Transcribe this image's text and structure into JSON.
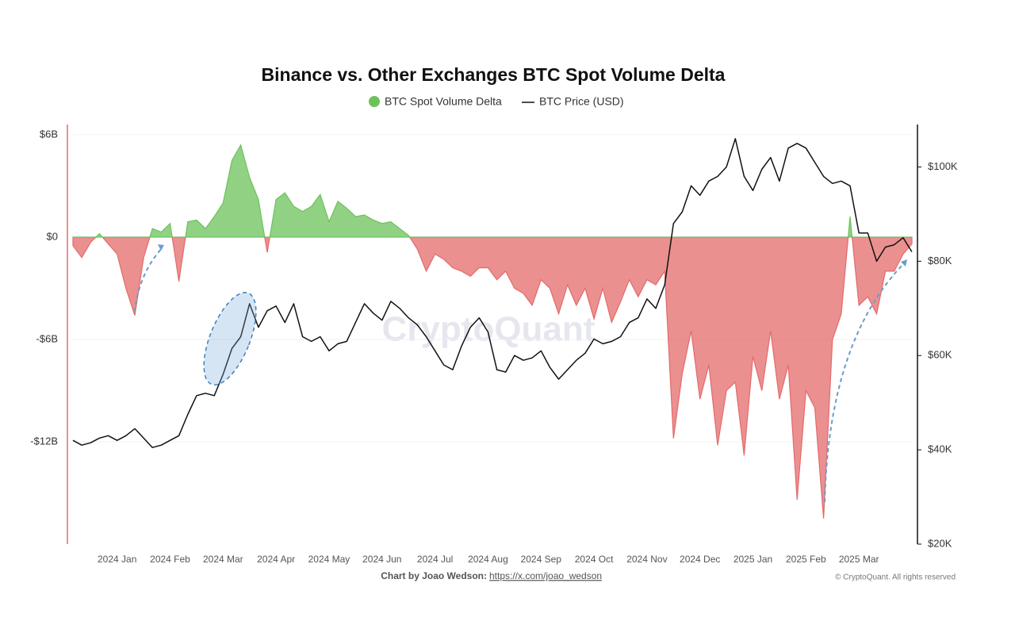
{
  "chart_data": {
    "type": "area_line",
    "title": "Binance vs. Other Exchanges BTC Spot Volume Delta",
    "watermark": "CryptoQuant",
    "credit": "Chart by Joao Wedson:",
    "credit_link": "https://x.com/joao_wedson",
    "copyright": "© CryptoQuant. All rights reserved",
    "categories": [
      null,
      null,
      null,
      null,
      null,
      "2024 Jan",
      null,
      null,
      null,
      null,
      null,
      "2024 Feb",
      null,
      null,
      null,
      null,
      null,
      "2024 Mar",
      null,
      null,
      null,
      null,
      null,
      "2024 Apr",
      null,
      null,
      null,
      null,
      null,
      "2024 May",
      null,
      null,
      null,
      null,
      null,
      "2024 Jun",
      null,
      null,
      null,
      null,
      null,
      "2024 Jul",
      null,
      null,
      null,
      null,
      null,
      "2024 Aug",
      null,
      null,
      null,
      null,
      null,
      "2024 Sep",
      null,
      null,
      null,
      null,
      null,
      "2024 Oct",
      null,
      null,
      null,
      null,
      null,
      "2024 Nov",
      null,
      null,
      null,
      null,
      null,
      "2024 Dec",
      null,
      null,
      null,
      null,
      null,
      "2025 Jan",
      null,
      null,
      null,
      null,
      null,
      "2025 Feb",
      null,
      null,
      null,
      null,
      null,
      "2025 Mar",
      null,
      null,
      null,
      null,
      null,
      null
    ],
    "series": [
      {
        "name": "BTC Spot Volume Delta",
        "color": "#6cc25a",
        "negative_color": "#e46a6a",
        "axis": "y",
        "values": [
          -0.5,
          -1.2,
          -0.3,
          0.2,
          -0.4,
          -1.0,
          -3.0,
          -4.6,
          -1.2,
          0.5,
          0.3,
          0.8,
          -2.6,
          0.9,
          1.0,
          0.5,
          1.2,
          2.0,
          4.5,
          5.4,
          3.5,
          2.2,
          -0.9,
          2.2,
          2.6,
          1.8,
          1.5,
          1.8,
          2.5,
          0.9,
          2.1,
          1.7,
          1.2,
          1.3,
          1.0,
          0.8,
          0.9,
          0.5,
          0.1,
          -0.7,
          -2.0,
          -1.0,
          -1.3,
          -1.8,
          -2.0,
          -2.3,
          -1.8,
          -1.8,
          -2.5,
          -2.0,
          -3.0,
          -3.3,
          -4.0,
          -2.5,
          -3.0,
          -4.5,
          -2.8,
          -4.0,
          -3.0,
          -4.8,
          -3.0,
          -5.0,
          -3.8,
          -2.5,
          -3.5,
          -2.5,
          -2.8,
          -2.0,
          -11.8,
          -8.0,
          -5.5,
          -9.5,
          -7.5,
          -12.2,
          -9.0,
          -8.5,
          -12.8,
          -7.0,
          -9.0,
          -5.5,
          -9.5,
          -7.5,
          -15.4,
          -9.0,
          -10.0,
          -16.5,
          -6.0,
          -4.5,
          1.2,
          -4.0,
          -3.5,
          -4.5,
          -2.0,
          -2.0,
          -1.0,
          -0.4
        ]
      },
      {
        "name": "BTC Price (USD)",
        "color": "#111111",
        "axis": "y2",
        "values": [
          42000,
          41000,
          41500,
          42500,
          43000,
          42000,
          43000,
          44500,
          42500,
          40500,
          41000,
          42000,
          43000,
          47500,
          51500,
          52000,
          51500,
          56000,
          61500,
          64000,
          71000,
          66000,
          69500,
          70500,
          67000,
          71000,
          64000,
          63000,
          64000,
          61000,
          62500,
          63000,
          67000,
          71000,
          69000,
          67500,
          71500,
          70000,
          68000,
          66500,
          64000,
          61000,
          58000,
          57000,
          62000,
          66000,
          68000,
          65000,
          57000,
          56500,
          60000,
          59000,
          59500,
          61000,
          57500,
          55000,
          57000,
          59000,
          60500,
          63500,
          62500,
          63000,
          64000,
          67000,
          68000,
          72000,
          70000,
          75000,
          88000,
          90500,
          96000,
          94000,
          97000,
          98000,
          100000,
          106000,
          98000,
          95000,
          99500,
          102000,
          97000,
          104000,
          105000,
          104000,
          101000,
          98000,
          96500,
          97000,
          96000,
          86000,
          86000,
          80000,
          83000,
          83500,
          85000,
          82000
        ]
      }
    ],
    "ylim": [
      -18,
      6.6
    ],
    "yticks": [
      {
        "value": 6,
        "label": "$6B"
      },
      {
        "value": 0,
        "label": "$0"
      },
      {
        "value": -6,
        "label": "-$6B"
      },
      {
        "value": -12,
        "label": "-$12B"
      }
    ],
    "y2lim": [
      20000,
      109000
    ],
    "y2ticks": [
      {
        "value": 100000,
        "label": "$100K"
      },
      {
        "value": 80000,
        "label": "$80K"
      },
      {
        "value": 60000,
        "label": "$60K"
      },
      {
        "value": 40000,
        "label": "$40K"
      },
      {
        "value": 20000,
        "label": "$20K"
      }
    ],
    "grid": true
  }
}
